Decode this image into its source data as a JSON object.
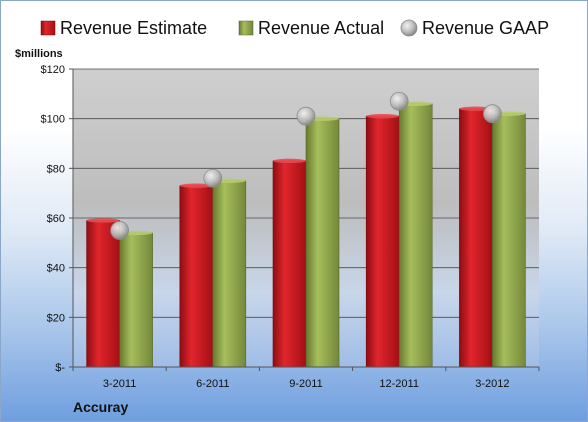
{
  "chart_data": {
    "type": "bar",
    "title": "",
    "unit_label": "$millions",
    "company": "Accuray",
    "categories": [
      "3-2011",
      "6-2011",
      "9-2011",
      "12-2011",
      "3-2012"
    ],
    "y_tick_labels": [
      "$-",
      "$20",
      "$40",
      "$60",
      "$80",
      "$100",
      "$120"
    ],
    "ylim": [
      0,
      120
    ],
    "grid": true,
    "legend_position": "top",
    "series": [
      {
        "name": "Revenue Estimate",
        "kind": "bar",
        "color": "#c4161c",
        "values": [
          59,
          73,
          83,
          101,
          104
        ]
      },
      {
        "name": "Revenue Actual",
        "kind": "bar",
        "color": "#8ea44a",
        "values": [
          54,
          75,
          100,
          106,
          102
        ]
      },
      {
        "name": "Revenue GAAP",
        "kind": "marker",
        "color": "#b8b8b8",
        "values": [
          55,
          76,
          101,
          107,
          102
        ]
      }
    ]
  }
}
